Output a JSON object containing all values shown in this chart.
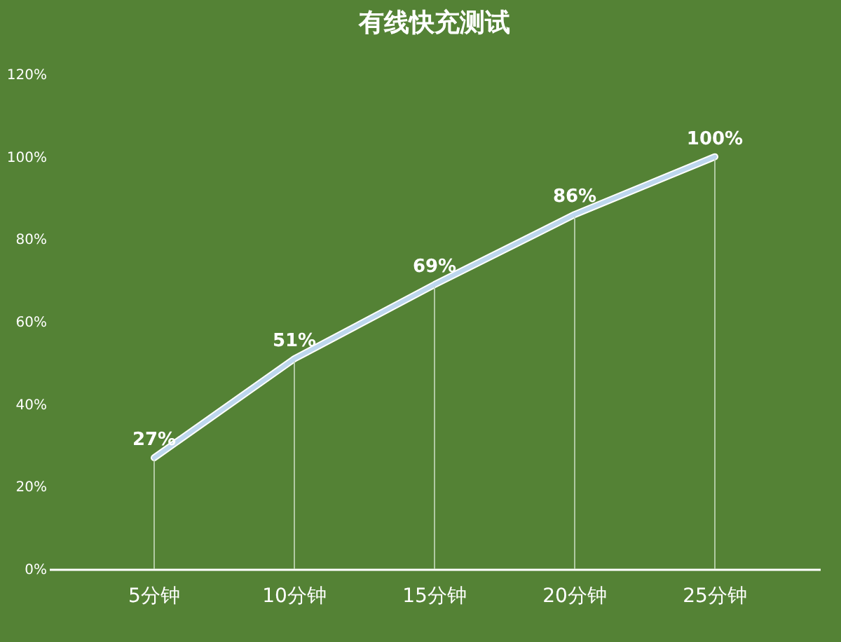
{
  "chart_data": {
    "type": "line",
    "title": "有线快充测试",
    "categories": [
      "5分钟",
      "10分钟",
      "15分钟",
      "20分钟",
      "25分钟"
    ],
    "series": [
      {
        "color": "#bdd7ee",
        "values": [
          27,
          51,
          69,
          86,
          100
        ]
      }
    ],
    "value_labels": [
      "27%",
      "51%",
      "69%",
      "86%",
      "100%"
    ],
    "ylim": [
      0,
      120
    ],
    "yticks": [
      {
        "value": 0,
        "label": "0%"
      },
      {
        "value": 20,
        "label": "20%"
      },
      {
        "value": 40,
        "label": "40%"
      },
      {
        "value": 60,
        "label": "60%"
      },
      {
        "value": 80,
        "label": "80%"
      },
      {
        "value": 100,
        "label": "100%"
      },
      {
        "value": 120,
        "label": "120%"
      }
    ],
    "line_style": "solid"
  }
}
